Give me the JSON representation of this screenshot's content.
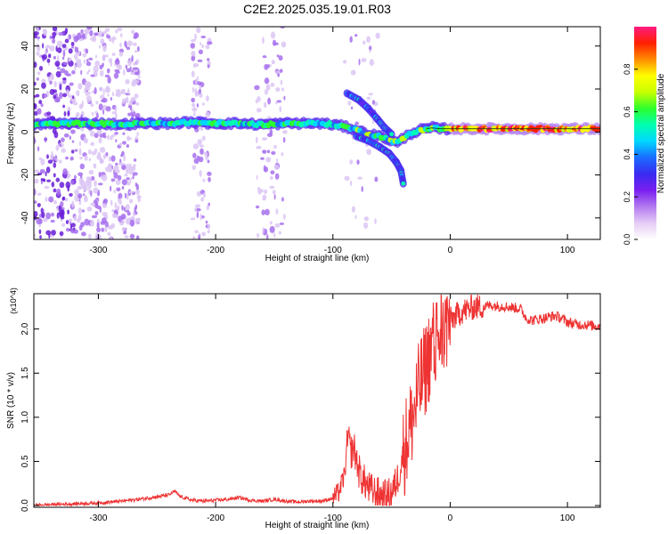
{
  "figure": {
    "title": "C2E2.2025.035.19.01.R03"
  },
  "chart_data": [
    {
      "type": "heatmap",
      "xlabel": "Height of straight line (km)",
      "ylabel": "Frequency (Hz)",
      "xlim": [
        -355,
        128
      ],
      "ylim": [
        -50,
        49
      ],
      "xticks": [
        -300,
        -200,
        -100,
        0,
        100
      ],
      "yticks": [
        -40,
        -20,
        0,
        20,
        40
      ],
      "colorbar": {
        "label": "Normalized spectral amplitude",
        "range": [
          0,
          1
        ],
        "ticks": [
          "0.0",
          "0.2",
          "0.4",
          "0.6",
          "0.8"
        ],
        "colors": [
          "#ffffff",
          "#e6ccf5",
          "#b37af0",
          "#7a1ff0",
          "#3a2af0",
          "#1a6cff",
          "#00d7ff",
          "#00ffb0",
          "#2cff2c",
          "#c8ff00",
          "#ffff00",
          "#ff8c00",
          "#ff2000",
          "#ff1a80"
        ]
      },
      "main_trace": [
        [
          -355,
          3.5
        ],
        [
          -330,
          4
        ],
        [
          -300,
          4
        ],
        [
          -280,
          3.5
        ],
        [
          -260,
          4
        ],
        [
          -240,
          4
        ],
        [
          -220,
          4.5
        ],
        [
          -200,
          4
        ],
        [
          -180,
          4
        ],
        [
          -160,
          3.5
        ],
        [
          -140,
          4
        ],
        [
          -120,
          4
        ],
        [
          -110,
          4
        ],
        [
          -100,
          3.5
        ],
        [
          -90,
          2.5
        ],
        [
          -80,
          1
        ],
        [
          -70,
          -1
        ],
        [
          -60,
          -2
        ],
        [
          -50,
          -4
        ],
        [
          -45,
          -5
        ],
        [
          -40,
          -3
        ],
        [
          -35,
          -1
        ],
        [
          -30,
          0
        ],
        [
          -25,
          1
        ],
        [
          -20,
          1.5
        ],
        [
          -15,
          2
        ],
        [
          -10,
          1.5
        ],
        [
          0,
          1.5
        ],
        [
          20,
          1.5
        ],
        [
          40,
          1.5
        ],
        [
          60,
          1.5
        ],
        [
          80,
          1.5
        ],
        [
          100,
          1.5
        ],
        [
          128,
          1.5
        ]
      ],
      "upper_branch": [
        [
          -88,
          18
        ],
        [
          -78,
          15
        ],
        [
          -70,
          11
        ],
        [
          -62,
          6
        ],
        [
          -56,
          2
        ],
        [
          -50,
          -1
        ]
      ],
      "lower_branch": [
        [
          -80,
          -2
        ],
        [
          -70,
          -4
        ],
        [
          -60,
          -7
        ],
        [
          -52,
          -10
        ],
        [
          -46,
          -14
        ],
        [
          -42,
          -18
        ],
        [
          -40,
          -24
        ]
      ]
    },
    {
      "type": "line",
      "xlabel": "Height of straight line (km)",
      "ylabel": "SNR (10 * v/v)",
      "y_multiplier": "(x10^4)",
      "xlim": [
        -355,
        128
      ],
      "ylim": [
        -0.02,
        2.4
      ],
      "xticks": [
        -300,
        -200,
        -100,
        0,
        100
      ],
      "yticks": [
        "0.0",
        "0.5",
        "1.0",
        "1.5",
        "2.0"
      ],
      "series": [
        {
          "color": "#ee3333",
          "x": [
            -355,
            -340,
            -320,
            -300,
            -280,
            -260,
            -250,
            -240,
            -235,
            -230,
            -220,
            -210,
            -200,
            -190,
            -180,
            -170,
            -160,
            -150,
            -140,
            -130,
            -120,
            -110,
            -100,
            -95,
            -90,
            -87,
            -85,
            -82,
            -78,
            -75,
            -72,
            -70,
            -65,
            -60,
            -55,
            -52,
            -50,
            -48,
            -45,
            -42,
            -40,
            -38,
            -35,
            -32,
            -30,
            -27,
            -25,
            -22,
            -20,
            -18,
            -16,
            -14,
            -12,
            -10,
            -8,
            -6,
            -4,
            -2,
            0,
            5,
            10,
            15,
            20,
            25,
            30,
            35,
            40,
            45,
            50,
            55,
            60,
            65,
            70,
            75,
            80,
            85,
            90,
            95,
            100,
            105,
            110,
            115,
            120,
            128
          ],
          "values": [
            0.0,
            0.01,
            0.02,
            0.03,
            0.05,
            0.08,
            0.1,
            0.12,
            0.16,
            0.1,
            0.06,
            0.05,
            0.06,
            0.07,
            0.09,
            0.06,
            0.05,
            0.07,
            0.05,
            0.04,
            0.05,
            0.05,
            0.08,
            0.15,
            0.35,
            0.8,
            0.6,
            0.65,
            0.4,
            0.3,
            0.25,
            0.2,
            0.15,
            0.12,
            0.1,
            0.12,
            0.15,
            0.2,
            0.3,
            0.45,
            0.6,
            0.7,
            0.85,
            1.0,
            1.1,
            1.3,
            1.4,
            1.5,
            1.6,
            1.7,
            1.75,
            1.8,
            1.9,
            1.9,
            1.95,
            2.0,
            2.0,
            2.05,
            2.1,
            2.15,
            2.2,
            2.22,
            2.25,
            2.25,
            2.26,
            2.27,
            2.26,
            2.26,
            2.25,
            2.24,
            2.23,
            2.12,
            2.1,
            2.11,
            2.12,
            2.14,
            2.15,
            2.12,
            2.08,
            2.06,
            2.05,
            2.05,
            2.04,
            2.03
          ]
        }
      ]
    }
  ]
}
